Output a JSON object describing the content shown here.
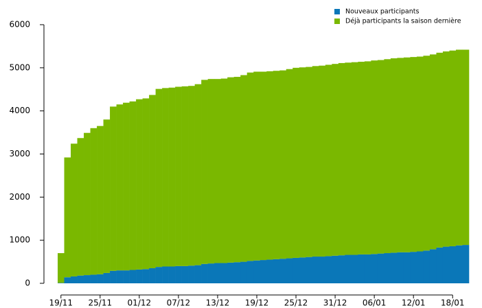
{
  "chart_data": {
    "type": "stacked_bar",
    "categories": [
      "19/11",
      null,
      null,
      null,
      null,
      null,
      "25/11",
      null,
      null,
      null,
      null,
      null,
      "01/12",
      null,
      null,
      null,
      null,
      null,
      "07/12",
      null,
      null,
      null,
      null,
      null,
      "13/12",
      null,
      null,
      null,
      null,
      null,
      "19/12",
      null,
      null,
      null,
      null,
      null,
      "25/12",
      null,
      null,
      null,
      null,
      null,
      "31/12",
      null,
      null,
      null,
      null,
      null,
      "06/01",
      null,
      null,
      null,
      null,
      null,
      "12/01",
      null,
      null,
      null,
      null,
      null,
      "18/01",
      null,
      null
    ],
    "series": [
      {
        "name": "Nouveaux participants",
        "color": "#0a77b8",
        "values": [
          10,
          140,
          160,
          180,
          190,
          200,
          210,
          240,
          290,
          300,
          300,
          310,
          320,
          330,
          350,
          380,
          390,
          390,
          400,
          400,
          410,
          420,
          450,
          460,
          470,
          470,
          480,
          490,
          500,
          520,
          530,
          540,
          550,
          560,
          570,
          580,
          590,
          600,
          610,
          620,
          620,
          630,
          640,
          650,
          660,
          660,
          670,
          670,
          680,
          690,
          700,
          710,
          720,
          720,
          730,
          740,
          760,
          790,
          830,
          850,
          860,
          880,
          890
        ]
      },
      {
        "name": "Déjà participants la saison dernière",
        "color": "#7ab800",
        "values": [
          690,
          2780,
          3080,
          3190,
          3300,
          3400,
          3440,
          3560,
          3810,
          3850,
          3890,
          3910,
          3950,
          3960,
          4020,
          4130,
          4140,
          4150,
          4160,
          4170,
          4170,
          4200,
          4270,
          4280,
          4270,
          4280,
          4300,
          4300,
          4330,
          4370,
          4380,
          4370,
          4370,
          4370,
          4370,
          4390,
          4410,
          4410,
          4410,
          4420,
          4430,
          4440,
          4450,
          4460,
          4460,
          4470,
          4470,
          4480,
          4490,
          4490,
          4500,
          4510,
          4510,
          4520,
          4520,
          4520,
          4520,
          4520,
          4520,
          4530,
          4540,
          4540,
          4530
        ]
      }
    ],
    "ylim": [
      0,
      6000
    ],
    "yticks": [
      0,
      1000,
      2000,
      3000,
      4000,
      5000,
      6000
    ],
    "legend": "top-right"
  }
}
